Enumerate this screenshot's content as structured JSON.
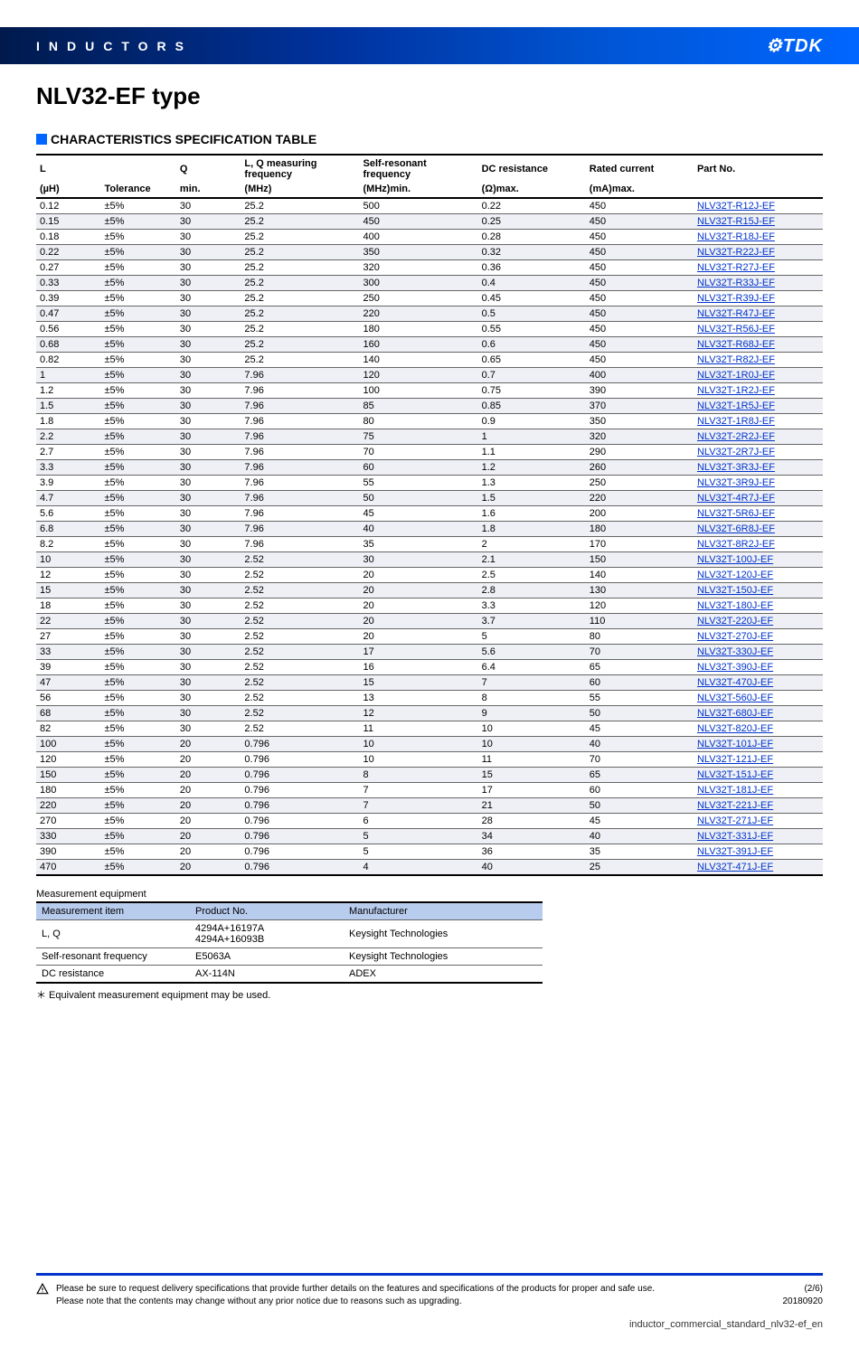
{
  "header": {
    "category": "INDUCTORS",
    "brand": "⚙TDK"
  },
  "title": "NLV32-EF type",
  "section_title": "CHARACTERISTICS SPECIFICATION TABLE",
  "spec_table": {
    "header1": [
      "L",
      "",
      "Q",
      "L, Q measuring frequency",
      "Self-resonant frequency",
      "DC resistance",
      "Rated current",
      "Part No."
    ],
    "header2": [
      "(µH)",
      "Tolerance",
      "min.",
      "(MHz)",
      "(MHz)min.",
      "(Ω)max.",
      "(mA)max.",
      ""
    ],
    "rows": [
      [
        "0.12",
        "±5%",
        "30",
        "25.2",
        "500",
        "0.22",
        "450",
        "NLV32T-R12J-EF"
      ],
      [
        "0.15",
        "±5%",
        "30",
        "25.2",
        "450",
        "0.25",
        "450",
        "NLV32T-R15J-EF"
      ],
      [
        "0.18",
        "±5%",
        "30",
        "25.2",
        "400",
        "0.28",
        "450",
        "NLV32T-R18J-EF"
      ],
      [
        "0.22",
        "±5%",
        "30",
        "25.2",
        "350",
        "0.32",
        "450",
        "NLV32T-R22J-EF"
      ],
      [
        "0.27",
        "±5%",
        "30",
        "25.2",
        "320",
        "0.36",
        "450",
        "NLV32T-R27J-EF"
      ],
      [
        "0.33",
        "±5%",
        "30",
        "25.2",
        "300",
        "0.4",
        "450",
        "NLV32T-R33J-EF"
      ],
      [
        "0.39",
        "±5%",
        "30",
        "25.2",
        "250",
        "0.45",
        "450",
        "NLV32T-R39J-EF"
      ],
      [
        "0.47",
        "±5%",
        "30",
        "25.2",
        "220",
        "0.5",
        "450",
        "NLV32T-R47J-EF"
      ],
      [
        "0.56",
        "±5%",
        "30",
        "25.2",
        "180",
        "0.55",
        "450",
        "NLV32T-R56J-EF"
      ],
      [
        "0.68",
        "±5%",
        "30",
        "25.2",
        "160",
        "0.6",
        "450",
        "NLV32T-R68J-EF"
      ],
      [
        "0.82",
        "±5%",
        "30",
        "25.2",
        "140",
        "0.65",
        "450",
        "NLV32T-R82J-EF"
      ],
      [
        "1",
        "±5%",
        "30",
        "7.96",
        "120",
        "0.7",
        "400",
        "NLV32T-1R0J-EF"
      ],
      [
        "1.2",
        "±5%",
        "30",
        "7.96",
        "100",
        "0.75",
        "390",
        "NLV32T-1R2J-EF"
      ],
      [
        "1.5",
        "±5%",
        "30",
        "7.96",
        "85",
        "0.85",
        "370",
        "NLV32T-1R5J-EF"
      ],
      [
        "1.8",
        "±5%",
        "30",
        "7.96",
        "80",
        "0.9",
        "350",
        "NLV32T-1R8J-EF"
      ],
      [
        "2.2",
        "±5%",
        "30",
        "7.96",
        "75",
        "1",
        "320",
        "NLV32T-2R2J-EF"
      ],
      [
        "2.7",
        "±5%",
        "30",
        "7.96",
        "70",
        "1.1",
        "290",
        "NLV32T-2R7J-EF"
      ],
      [
        "3.3",
        "±5%",
        "30",
        "7.96",
        "60",
        "1.2",
        "260",
        "NLV32T-3R3J-EF"
      ],
      [
        "3.9",
        "±5%",
        "30",
        "7.96",
        "55",
        "1.3",
        "250",
        "NLV32T-3R9J-EF"
      ],
      [
        "4.7",
        "±5%",
        "30",
        "7.96",
        "50",
        "1.5",
        "220",
        "NLV32T-4R7J-EF"
      ],
      [
        "5.6",
        "±5%",
        "30",
        "7.96",
        "45",
        "1.6",
        "200",
        "NLV32T-5R6J-EF"
      ],
      [
        "6.8",
        "±5%",
        "30",
        "7.96",
        "40",
        "1.8",
        "180",
        "NLV32T-6R8J-EF"
      ],
      [
        "8.2",
        "±5%",
        "30",
        "7.96",
        "35",
        "2",
        "170",
        "NLV32T-8R2J-EF"
      ],
      [
        "10",
        "±5%",
        "30",
        "2.52",
        "30",
        "2.1",
        "150",
        "NLV32T-100J-EF"
      ],
      [
        "12",
        "±5%",
        "30",
        "2.52",
        "20",
        "2.5",
        "140",
        "NLV32T-120J-EF"
      ],
      [
        "15",
        "±5%",
        "30",
        "2.52",
        "20",
        "2.8",
        "130",
        "NLV32T-150J-EF"
      ],
      [
        "18",
        "±5%",
        "30",
        "2.52",
        "20",
        "3.3",
        "120",
        "NLV32T-180J-EF"
      ],
      [
        "22",
        "±5%",
        "30",
        "2.52",
        "20",
        "3.7",
        "110",
        "NLV32T-220J-EF"
      ],
      [
        "27",
        "±5%",
        "30",
        "2.52",
        "20",
        "5",
        "80",
        "NLV32T-270J-EF"
      ],
      [
        "33",
        "±5%",
        "30",
        "2.52",
        "17",
        "5.6",
        "70",
        "NLV32T-330J-EF"
      ],
      [
        "39",
        "±5%",
        "30",
        "2.52",
        "16",
        "6.4",
        "65",
        "NLV32T-390J-EF"
      ],
      [
        "47",
        "±5%",
        "30",
        "2.52",
        "15",
        "7",
        "60",
        "NLV32T-470J-EF"
      ],
      [
        "56",
        "±5%",
        "30",
        "2.52",
        "13",
        "8",
        "55",
        "NLV32T-560J-EF"
      ],
      [
        "68",
        "±5%",
        "30",
        "2.52",
        "12",
        "9",
        "50",
        "NLV32T-680J-EF"
      ],
      [
        "82",
        "±5%",
        "30",
        "2.52",
        "11",
        "10",
        "45",
        "NLV32T-820J-EF"
      ],
      [
        "100",
        "±5%",
        "20",
        "0.796",
        "10",
        "10",
        "40",
        "NLV32T-101J-EF"
      ],
      [
        "120",
        "±5%",
        "20",
        "0.796",
        "10",
        "11",
        "70",
        "NLV32T-121J-EF"
      ],
      [
        "150",
        "±5%",
        "20",
        "0.796",
        "8",
        "15",
        "65",
        "NLV32T-151J-EF"
      ],
      [
        "180",
        "±5%",
        "20",
        "0.796",
        "7",
        "17",
        "60",
        "NLV32T-181J-EF"
      ],
      [
        "220",
        "±5%",
        "20",
        "0.796",
        "7",
        "21",
        "50",
        "NLV32T-221J-EF"
      ],
      [
        "270",
        "±5%",
        "20",
        "0.796",
        "6",
        "28",
        "45",
        "NLV32T-271J-EF"
      ],
      [
        "330",
        "±5%",
        "20",
        "0.796",
        "5",
        "34",
        "40",
        "NLV32T-331J-EF"
      ],
      [
        "390",
        "±5%",
        "20",
        "0.796",
        "5",
        "36",
        "35",
        "NLV32T-391J-EF"
      ],
      [
        "470",
        "±5%",
        "20",
        "0.796",
        "4",
        "40",
        "25",
        "NLV32T-471J-EF"
      ]
    ]
  },
  "meas_title": "Measurement equipment",
  "meas_table": {
    "cols": [
      "Measurement item",
      "Product No.",
      "Manufacturer"
    ],
    "rows": [
      [
        "L, Q",
        "4294A+16197A\n4294A+16093B",
        "Keysight Technologies"
      ],
      [
        "Self-resonant frequency",
        "E5063A",
        "Keysight Technologies"
      ],
      [
        "DC resistance",
        "AX-114N",
        "ADEX"
      ]
    ]
  },
  "meas_note": "＊ Equivalent measurement equipment may be used.",
  "footer": {
    "warn1": "Please be sure to request delivery specifications that provide further details on the features and specifications of the products for proper and safe use.",
    "warn2": "Please note that the contents may change without any prior notice due to reasons such as upgrading.",
    "page": "(2/6)",
    "date": "20180920",
    "filename": "inductor_commercial_standard_nlv32-ef_en"
  }
}
